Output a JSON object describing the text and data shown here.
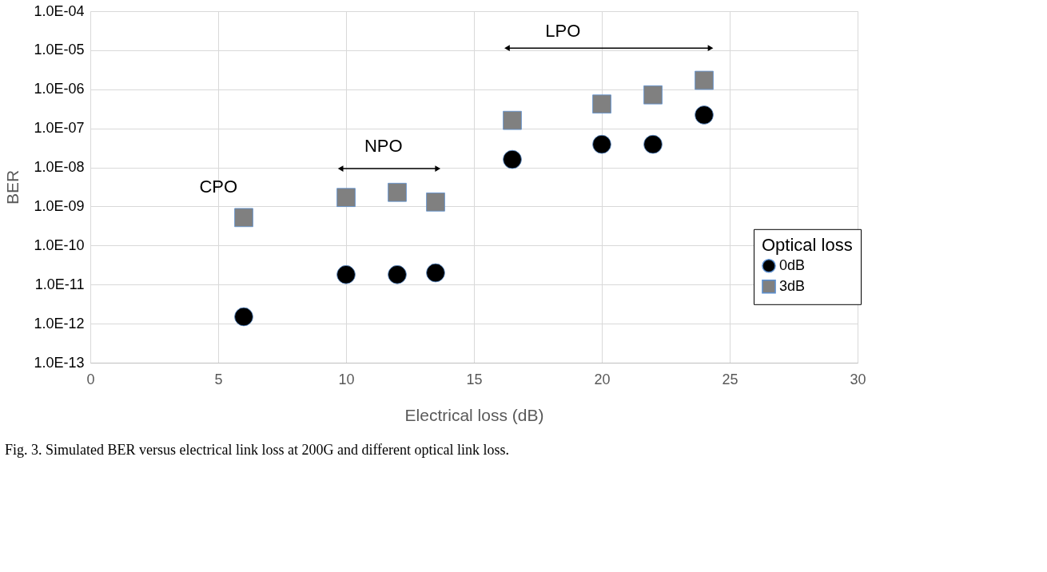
{
  "chart_data": {
    "type": "scatter",
    "xlabel": "Electrical loss (dB)",
    "ylabel": "BER",
    "legend_title": "Optical loss",
    "x": [
      6,
      10,
      12,
      13.5,
      16.5,
      20,
      22,
      24
    ],
    "series": [
      {
        "name": "0dB",
        "color": "#000000",
        "marker": "circle",
        "values": [
          1.5e-12,
          1.8e-11,
          1.8e-11,
          2e-11,
          1.6e-08,
          3.9e-08,
          3.9e-08,
          2.2e-07
        ]
      },
      {
        "name": "3dB",
        "color": "#808080",
        "marker": "square",
        "values": [
          5.2e-10,
          1.7e-09,
          2.3e-09,
          1.3e-09,
          1.6e-07,
          4.2e-07,
          7.2e-07,
          1.7e-06
        ]
      }
    ],
    "xlim": [
      0,
      30
    ],
    "xticks": [
      0,
      5,
      10,
      15,
      20,
      25,
      30
    ],
    "ylim": [
      1e-13,
      0.0001
    ],
    "yticks": [
      {
        "value": 1e-13,
        "label": "1.0E-13"
      },
      {
        "value": 1e-12,
        "label": "1.0E-12"
      },
      {
        "value": 1e-11,
        "label": "1.0E-11"
      },
      {
        "value": 1e-10,
        "label": "1.0E-10"
      },
      {
        "value": 1e-09,
        "label": "1.0E-09"
      },
      {
        "value": 1e-08,
        "label": "1.0E-08"
      },
      {
        "value": 1e-07,
        "label": "1.0E-07"
      },
      {
        "value": 1e-06,
        "label": "1.0E-06"
      },
      {
        "value": 1e-05,
        "label": "1.0E-05"
      },
      {
        "value": 0.0001,
        "label": "1.0E-04"
      }
    ],
    "log": "y",
    "grid": true,
    "legend": "right",
    "annotations": [
      "CPO",
      "NPO",
      "LPO",
      "Fig. 3. Simulated BER versus electrical link loss at 200G and different optical link loss."
    ]
  }
}
